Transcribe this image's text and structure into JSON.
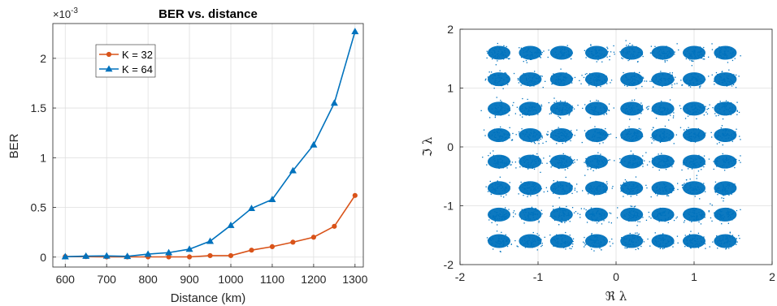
{
  "chart_data": [
    {
      "type": "line",
      "title": "BER vs. distance",
      "xlabel": "Distance (km)",
      "ylabel": "BER",
      "y_exponent_label": "×10",
      "y_exponent_power": "-3",
      "xlim": [
        570,
        1320
      ],
      "ylim": [
        -0.0001,
        0.00235
      ],
      "xticks": [
        600,
        700,
        800,
        900,
        1000,
        1100,
        1200,
        1300
      ],
      "yticks": [
        0,
        0.0005,
        0.001,
        0.0015,
        0.002
      ],
      "ytick_labels": [
        "0",
        "0.5",
        "1",
        "1.5",
        "2"
      ],
      "grid": true,
      "legend_position": "upper-left",
      "x": [
        600,
        650,
        700,
        750,
        800,
        850,
        900,
        950,
        1000,
        1050,
        1100,
        1150,
        1200,
        1250,
        1300
      ],
      "series": [
        {
          "name": "K = 32",
          "color": "#D95319",
          "marker": "circle",
          "values": [
            5e-06,
            5e-06,
            2e-06,
            2e-06,
            2e-06,
            2e-06,
            2e-06,
            1.5e-05,
            1.5e-05,
            7e-05,
            0.000105,
            0.00015,
            0.0002,
            0.00031,
            0.00062
          ]
        },
        {
          "name": "K = 64",
          "color": "#0072BD",
          "marker": "triangle",
          "values": [
            5e-06,
            1e-05,
            1.2e-05,
            8e-06,
            3e-05,
            4.5e-05,
            8e-05,
            0.00016,
            0.00032,
            0.00049,
            0.00058,
            0.00087,
            0.00113,
            0.00155,
            0.00227
          ]
        }
      ]
    },
    {
      "type": "scatter",
      "xlabel": "ℜ λ",
      "ylabel": "ℑ λ",
      "xlim": [
        -2,
        2
      ],
      "ylim": [
        -2,
        2
      ],
      "xticks": [
        -2,
        -1,
        0,
        1,
        2
      ],
      "yticks": [
        -2,
        -1,
        0,
        1,
        2
      ],
      "grid": true,
      "color": "#0072BD",
      "cluster_centers_x": [
        -1.5,
        -1.1,
        -0.7,
        -0.25,
        0.2,
        0.6,
        1.0,
        1.4
      ],
      "cluster_centers_y": [
        1.6,
        1.15,
        0.65,
        0.2,
        -0.25,
        -0.7,
        -1.15,
        -1.6
      ]
    }
  ]
}
